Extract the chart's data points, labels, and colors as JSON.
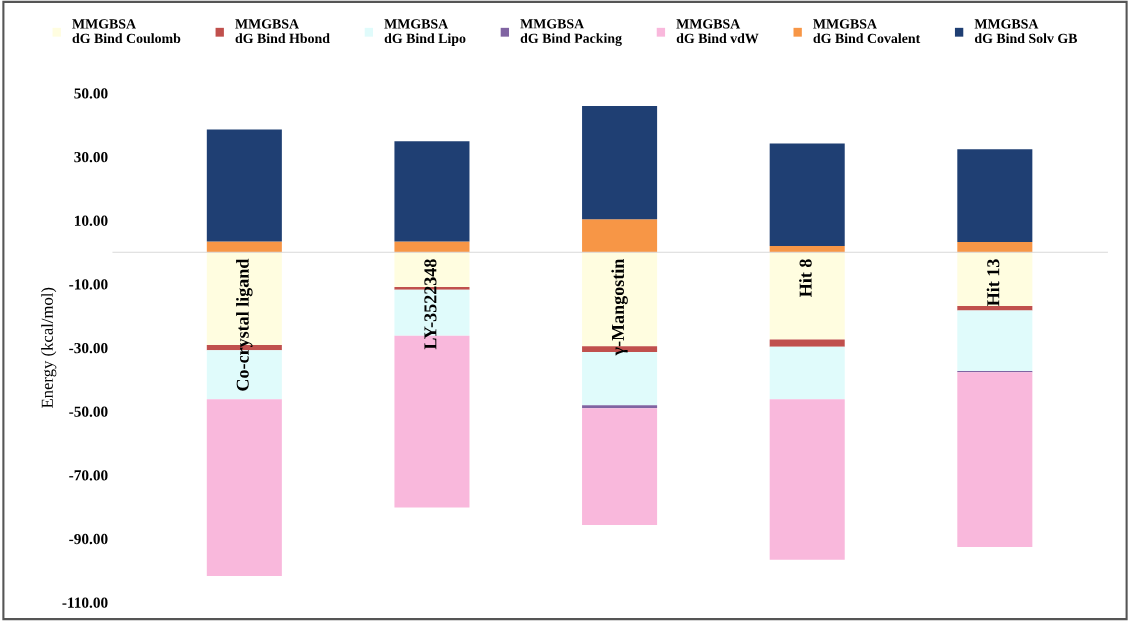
{
  "chart_data": {
    "type": "bar",
    "stacked": true,
    "ylabel": "Energy (kcal/mol)",
    "categories": [
      "Co-crystal ligand",
      "LY-3522348",
      "γ-Mangostin",
      "Hit 8",
      "Hit 13"
    ],
    "series": [
      {
        "name": "MMGBSA\ndG Bind Coulomb",
        "color": "#fffde0",
        "values": [
          -29.1,
          -10.9,
          -29.5,
          -27.4,
          -16.9
        ]
      },
      {
        "name": "MMGBSA\ndG Bind Hbond",
        "color": "#c0504d",
        "values": [
          -1.7,
          -0.9,
          -1.8,
          -2.3,
          -1.4
        ]
      },
      {
        "name": "MMGBSA\ndG Bind Lipo",
        "color": "#e0fbfb",
        "values": [
          -15.4,
          -14.4,
          -16.8,
          -16.5,
          -19.0
        ]
      },
      {
        "name": "MMGBSA\ndG Bind Packing",
        "color": "#8064a2",
        "values": [
          null,
          null,
          -0.9,
          null,
          -0.4
        ]
      },
      {
        "name": "MMGBSA\ndG Bind vdW",
        "color": "#f9b8dc",
        "values": [
          -55.5,
          -54.0,
          -36.7,
          -50.4,
          -54.9
        ]
      },
      {
        "name": "MMGBSA\ndG Bind Covalent",
        "color": "#f79646",
        "values": [
          3.4,
          3.4,
          10.4,
          2.0,
          3.2
        ]
      },
      {
        "name": "MMGBSA\ndG Bind Solv GB",
        "color": "#1f3f73",
        "values": [
          35.2,
          31.5,
          35.6,
          32.2,
          29.2
        ]
      }
    ],
    "ylim": [
      -110,
      50
    ],
    "yticks": [
      {
        "value": 50,
        "label": "50.00"
      },
      {
        "value": 30,
        "label": "30.00"
      },
      {
        "value": 10,
        "label": "10.00"
      },
      {
        "value": -10,
        "label": "-10.00"
      },
      {
        "value": -30,
        "label": "-30.00"
      },
      {
        "value": -50,
        "label": "-50.00"
      },
      {
        "value": -70,
        "label": "-70.00"
      },
      {
        "value": -90,
        "label": "-90.00"
      },
      {
        "value": -110,
        "label": "-110.00"
      }
    ],
    "tick_labels": "y",
    "legend": "top",
    "grid": false
  }
}
